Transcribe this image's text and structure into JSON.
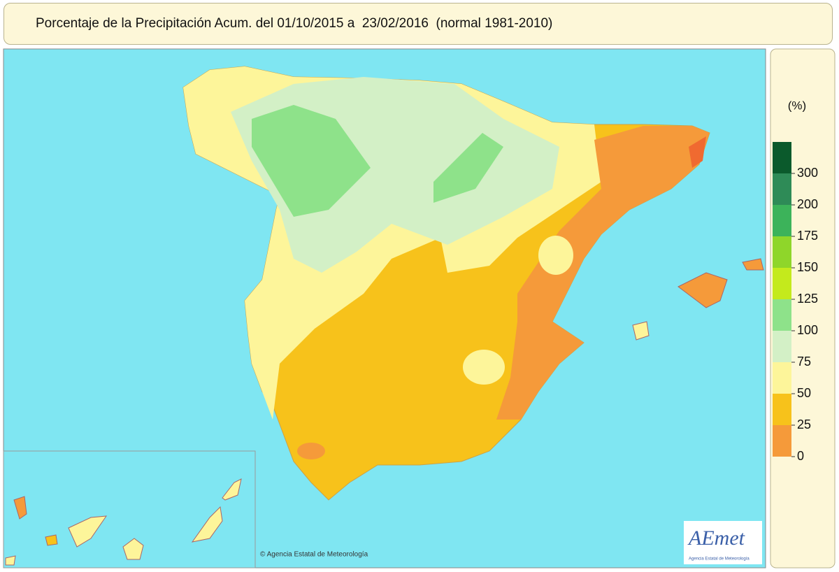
{
  "header": {
    "title": "Porcentaje de la Precipitación Acum. del 01/10/2015 a  23/02/2016  (normal 1981-2010)"
  },
  "legend": {
    "unit": "(%)",
    "bins": [
      {
        "color": "#0b5a2c",
        "label": "300"
      },
      {
        "color": "#2e8b57",
        "label": "200"
      },
      {
        "color": "#3cb35a",
        "label": "175"
      },
      {
        "color": "#8fd62a",
        "label": "150"
      },
      {
        "color": "#c4ea1c",
        "label": "125"
      },
      {
        "color": "#8ee28a",
        "label": "100"
      },
      {
        "color": "#d3f0c6",
        "label": "75"
      },
      {
        "color": "#fdf59a",
        "label": "50"
      },
      {
        "color": "#f7c21b",
        "label": "25"
      },
      {
        "color": "#f59a3a",
        "label": "0"
      }
    ]
  },
  "map": {
    "copyright": "© Agencia Estatal de Meteorología",
    "logo": "AEmet",
    "logo_subtitle": "Agencia Estatal de Meteorología"
  }
}
